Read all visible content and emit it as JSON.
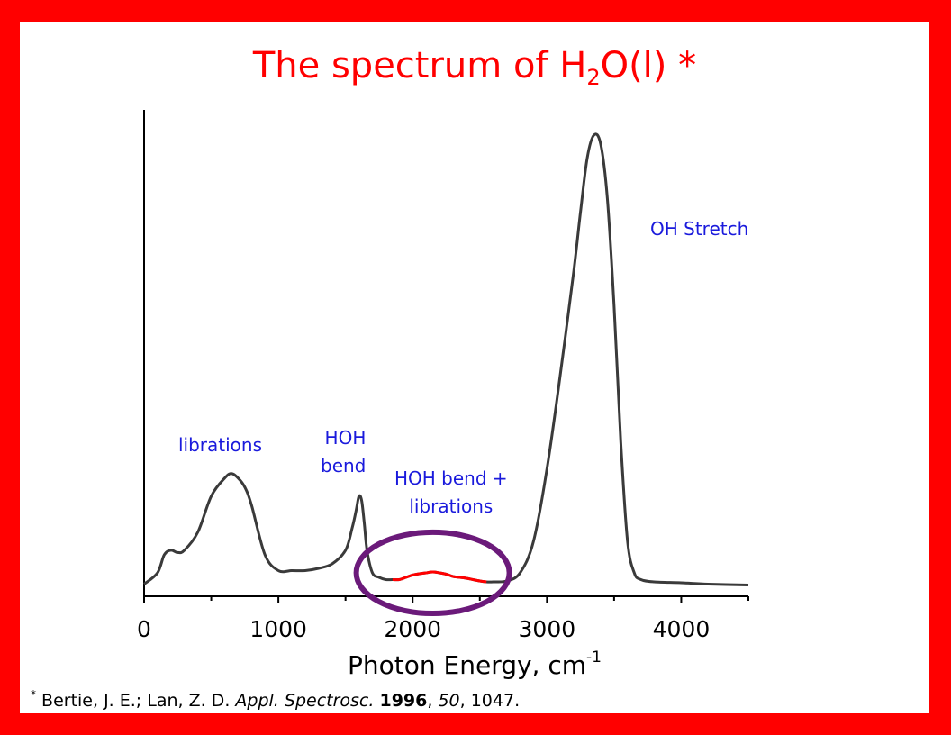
{
  "title": {
    "prefix": "The spectrum of H",
    "subscript": "2",
    "suffix": "O(l) *"
  },
  "annotations": {
    "librations": "librations",
    "hoh_bend_line1": "HOH",
    "hoh_bend_line2": "bend",
    "combination_line1": "HOH bend +",
    "combination_line2": "librations",
    "oh_stretch": "OH Stretch"
  },
  "x_axis_label": {
    "text": "Photon Energy, cm",
    "superscript": "-1"
  },
  "citation": {
    "marker": "*",
    "authors": " Bertie, J. E.; Lan, Z. D. ",
    "journal": "Appl. Spectrosc.",
    "sep1": " ",
    "year": "1996",
    "sep2": ", ",
    "volume": "50",
    "pages": ", 1047."
  },
  "colors": {
    "border": "#ff0000",
    "title": "#ff0000",
    "annotation": "#1a1adc",
    "spectrum": "#3a3a3a",
    "highlight": "#ff0000",
    "circle": "#6b1a7a"
  },
  "chart_data": {
    "type": "line",
    "title": "The spectrum of H2O(l) *",
    "xlabel": "Photon Energy, cm-1",
    "ylabel": "",
    "xlim": [
      0,
      4500
    ],
    "ylim": [
      0,
      1.0
    ],
    "x_ticks": [
      0,
      1000,
      2000,
      3000,
      4000
    ],
    "grid": false,
    "series": [
      {
        "x": [
          0,
          100,
          150,
          200,
          250,
          300,
          400,
          500,
          600,
          650,
          700,
          750,
          800,
          900,
          1000,
          1100,
          1200,
          1300,
          1400,
          1500,
          1550,
          1580,
          1600,
          1620,
          1640,
          1660,
          1700,
          1750,
          1800,
          1850,
          1900,
          1950,
          2000,
          2050,
          2100,
          2150,
          2200,
          2250,
          2300,
          2350,
          2400,
          2450,
          2500,
          2550,
          2600,
          2700,
          2800,
          2900,
          3000,
          3100,
          3200,
          3250,
          3300,
          3350,
          3400,
          3450,
          3500,
          3550,
          3600,
          3650,
          3700,
          3800,
          4000,
          4200,
          4500
        ],
        "y": [
          0.005,
          0.03,
          0.07,
          0.08,
          0.075,
          0.08,
          0.12,
          0.2,
          0.24,
          0.25,
          0.24,
          0.22,
          0.18,
          0.07,
          0.035,
          0.035,
          0.035,
          0.04,
          0.05,
          0.08,
          0.13,
          0.17,
          0.2,
          0.19,
          0.14,
          0.08,
          0.03,
          0.02,
          0.015,
          0.015,
          0.015,
          0.02,
          0.025,
          0.028,
          0.03,
          0.032,
          0.03,
          0.027,
          0.022,
          0.02,
          0.018,
          0.015,
          0.012,
          0.01,
          0.01,
          0.012,
          0.03,
          0.1,
          0.26,
          0.47,
          0.7,
          0.83,
          0.95,
          1.0,
          0.98,
          0.86,
          0.62,
          0.32,
          0.1,
          0.03,
          0.015,
          0.01,
          0.008,
          0.005,
          0.003
        ]
      }
    ],
    "highlight_range": [
      1850,
      2550
    ],
    "highlight_ellipse": {
      "x_center": 2150,
      "x_radius": 570,
      "y_center": 0.03,
      "y_radius": 0.09
    }
  }
}
